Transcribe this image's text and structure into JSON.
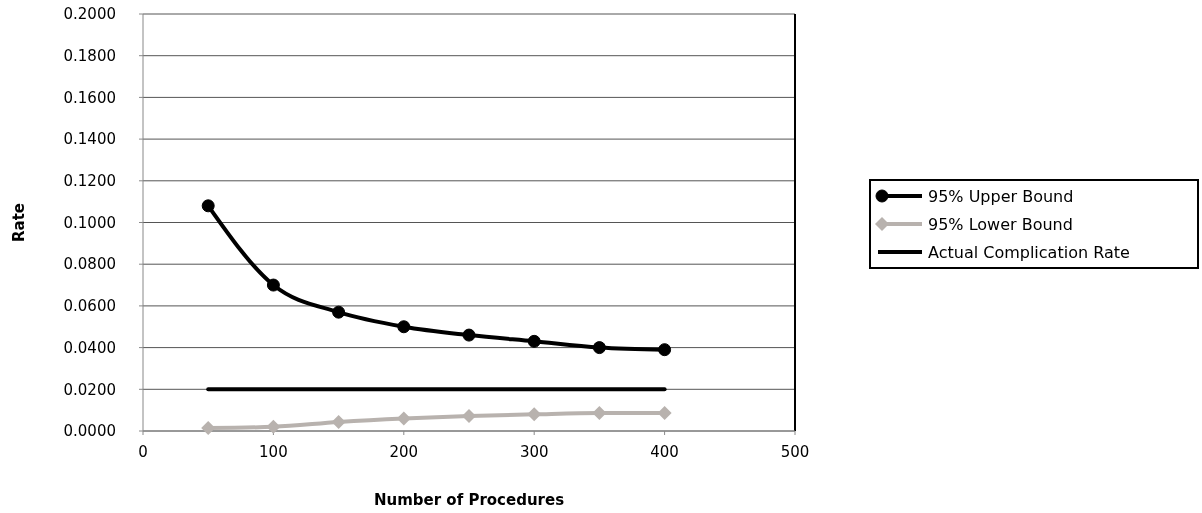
{
  "chart_data": {
    "type": "line",
    "xlabel": "Number of Procedures",
    "ylabel": "Rate",
    "x": [
      50,
      100,
      150,
      200,
      250,
      300,
      350,
      400
    ],
    "series": [
      {
        "name": "95% Upper Bound",
        "color": "#000000",
        "marker": "circle",
        "values": [
          0.108,
          0.07,
          0.057,
          0.05,
          0.046,
          0.043,
          0.04,
          0.039
        ]
      },
      {
        "name": "95% Lower Bound",
        "color": "#b8b2ae",
        "marker": "diamond",
        "values": [
          0.0014,
          0.002,
          0.0043,
          0.006,
          0.0072,
          0.008,
          0.0086,
          0.0086
        ]
      },
      {
        "name": "Actual Complication Rate",
        "color": "#000000",
        "marker": "none",
        "values": [
          0.02,
          0.02,
          0.02,
          0.02,
          0.02,
          0.02,
          0.02,
          0.02
        ]
      }
    ],
    "xlim": [
      0,
      500
    ],
    "xticks": [
      0,
      100,
      200,
      300,
      400,
      500
    ],
    "ylim": [
      0,
      0.2
    ],
    "yticks": [
      {
        "value": 0,
        "label": "0.0000"
      },
      {
        "value": 0.02,
        "label": "0.0200"
      },
      {
        "value": 0.04,
        "label": "0.0400"
      },
      {
        "value": 0.06,
        "label": "0.0600"
      },
      {
        "value": 0.08,
        "label": "0.0800"
      },
      {
        "value": 0.1,
        "label": "0.1000"
      },
      {
        "value": 0.12,
        "label": "0.1200"
      },
      {
        "value": 0.14,
        "label": "0.1400"
      },
      {
        "value": 0.16,
        "label": "0.1600"
      },
      {
        "value": 0.18,
        "label": "0.1800"
      },
      {
        "value": 0.2,
        "label": "0.2000"
      }
    ],
    "grid": "y",
    "legend": "right"
  }
}
